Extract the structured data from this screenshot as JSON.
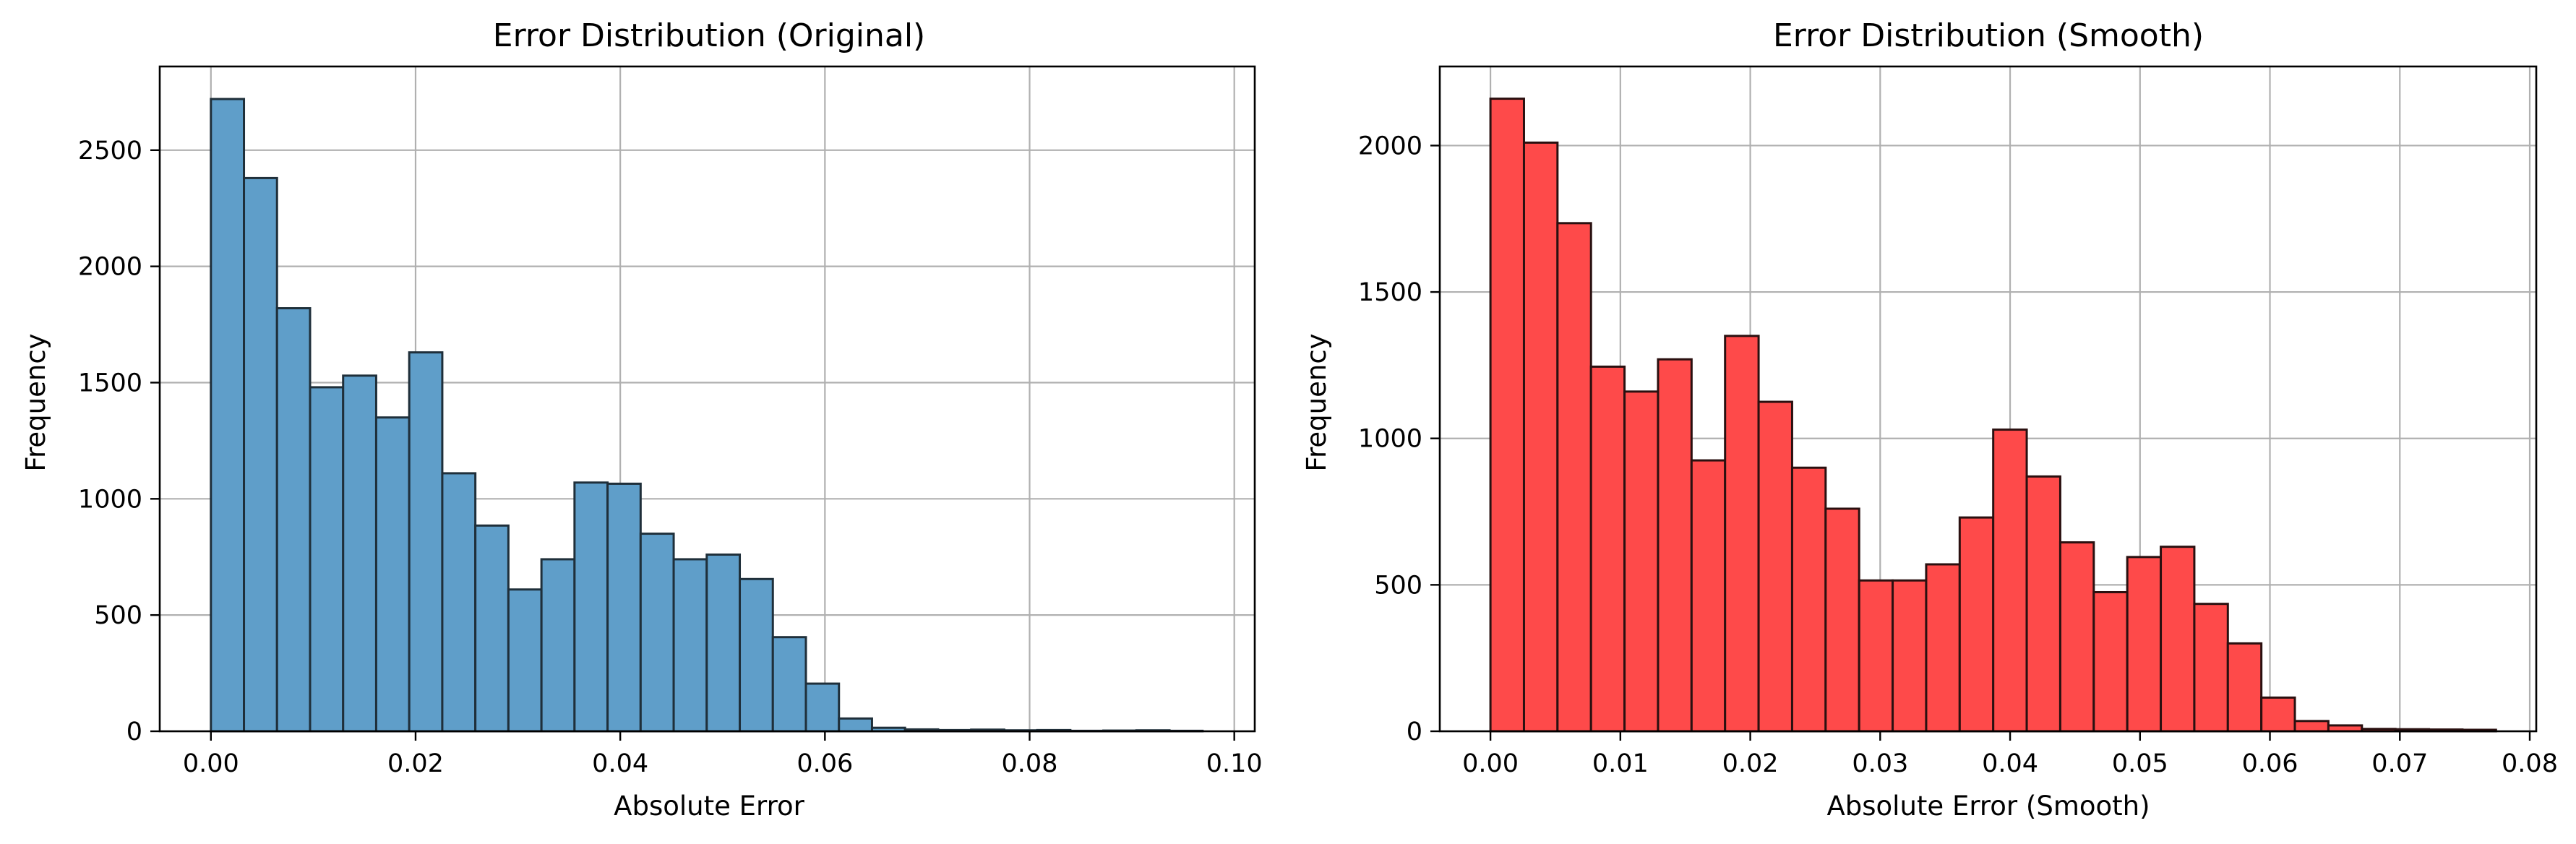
{
  "chart_data": [
    {
      "type": "bar",
      "title": "Error Distribution (Original)",
      "xlabel": "Absolute Error",
      "ylabel": "Frequency",
      "xlim": [
        -0.005,
        0.102
      ],
      "ylim": [
        0,
        2860
      ],
      "xticks": [
        0.0,
        0.02,
        0.04,
        0.06,
        0.08,
        0.1
      ],
      "xtick_labels": [
        "0.00",
        "0.02",
        "0.04",
        "0.06",
        "0.08",
        "0.10"
      ],
      "yticks": [
        0,
        500,
        1000,
        1500,
        2000,
        2500
      ],
      "ytick_labels": [
        "0",
        "500",
        "1000",
        "1500",
        "2000",
        "2500"
      ],
      "bin_start": 0.0,
      "bin_width": 0.00323,
      "values": [
        2720,
        2380,
        1820,
        1480,
        1530,
        1350,
        1630,
        1110,
        885,
        610,
        740,
        1070,
        1065,
        850,
        740,
        760,
        655,
        405,
        205,
        55,
        15,
        8,
        5,
        7,
        4,
        5,
        2,
        3,
        4,
        2
      ],
      "bar_color": "#5f9ec9",
      "edge_color": "#1f2f3a",
      "grid": true,
      "legend": "none"
    },
    {
      "type": "bar",
      "title": "Error Distribution (Smooth)",
      "xlabel": "Absolute Error (Smooth)",
      "ylabel": "Frequency",
      "xlim": [
        -0.0039,
        0.0805
      ],
      "ylim": [
        0,
        2270
      ],
      "xticks": [
        0.0,
        0.01,
        0.02,
        0.03,
        0.04,
        0.05,
        0.06,
        0.07,
        0.08
      ],
      "xtick_labels": [
        "0.00",
        "0.01",
        "0.02",
        "0.03",
        "0.04",
        "0.05",
        "0.06",
        "0.07",
        "0.08"
      ],
      "yticks": [
        0,
        500,
        1000,
        1500,
        2000
      ],
      "ytick_labels": [
        "0",
        "500",
        "1000",
        "1500",
        "2000"
      ],
      "bin_start": 0.0,
      "bin_width": 0.00258,
      "values": [
        2160,
        2010,
        1735,
        1245,
        1160,
        1270,
        925,
        1350,
        1125,
        900,
        760,
        515,
        515,
        570,
        730,
        1030,
        870,
        645,
        475,
        595,
        630,
        435,
        300,
        115,
        35,
        20,
        8,
        7,
        6,
        5
      ],
      "bar_color": "#fe4a4a",
      "edge_color": "#2a1010",
      "grid": true,
      "legend": "none"
    }
  ]
}
